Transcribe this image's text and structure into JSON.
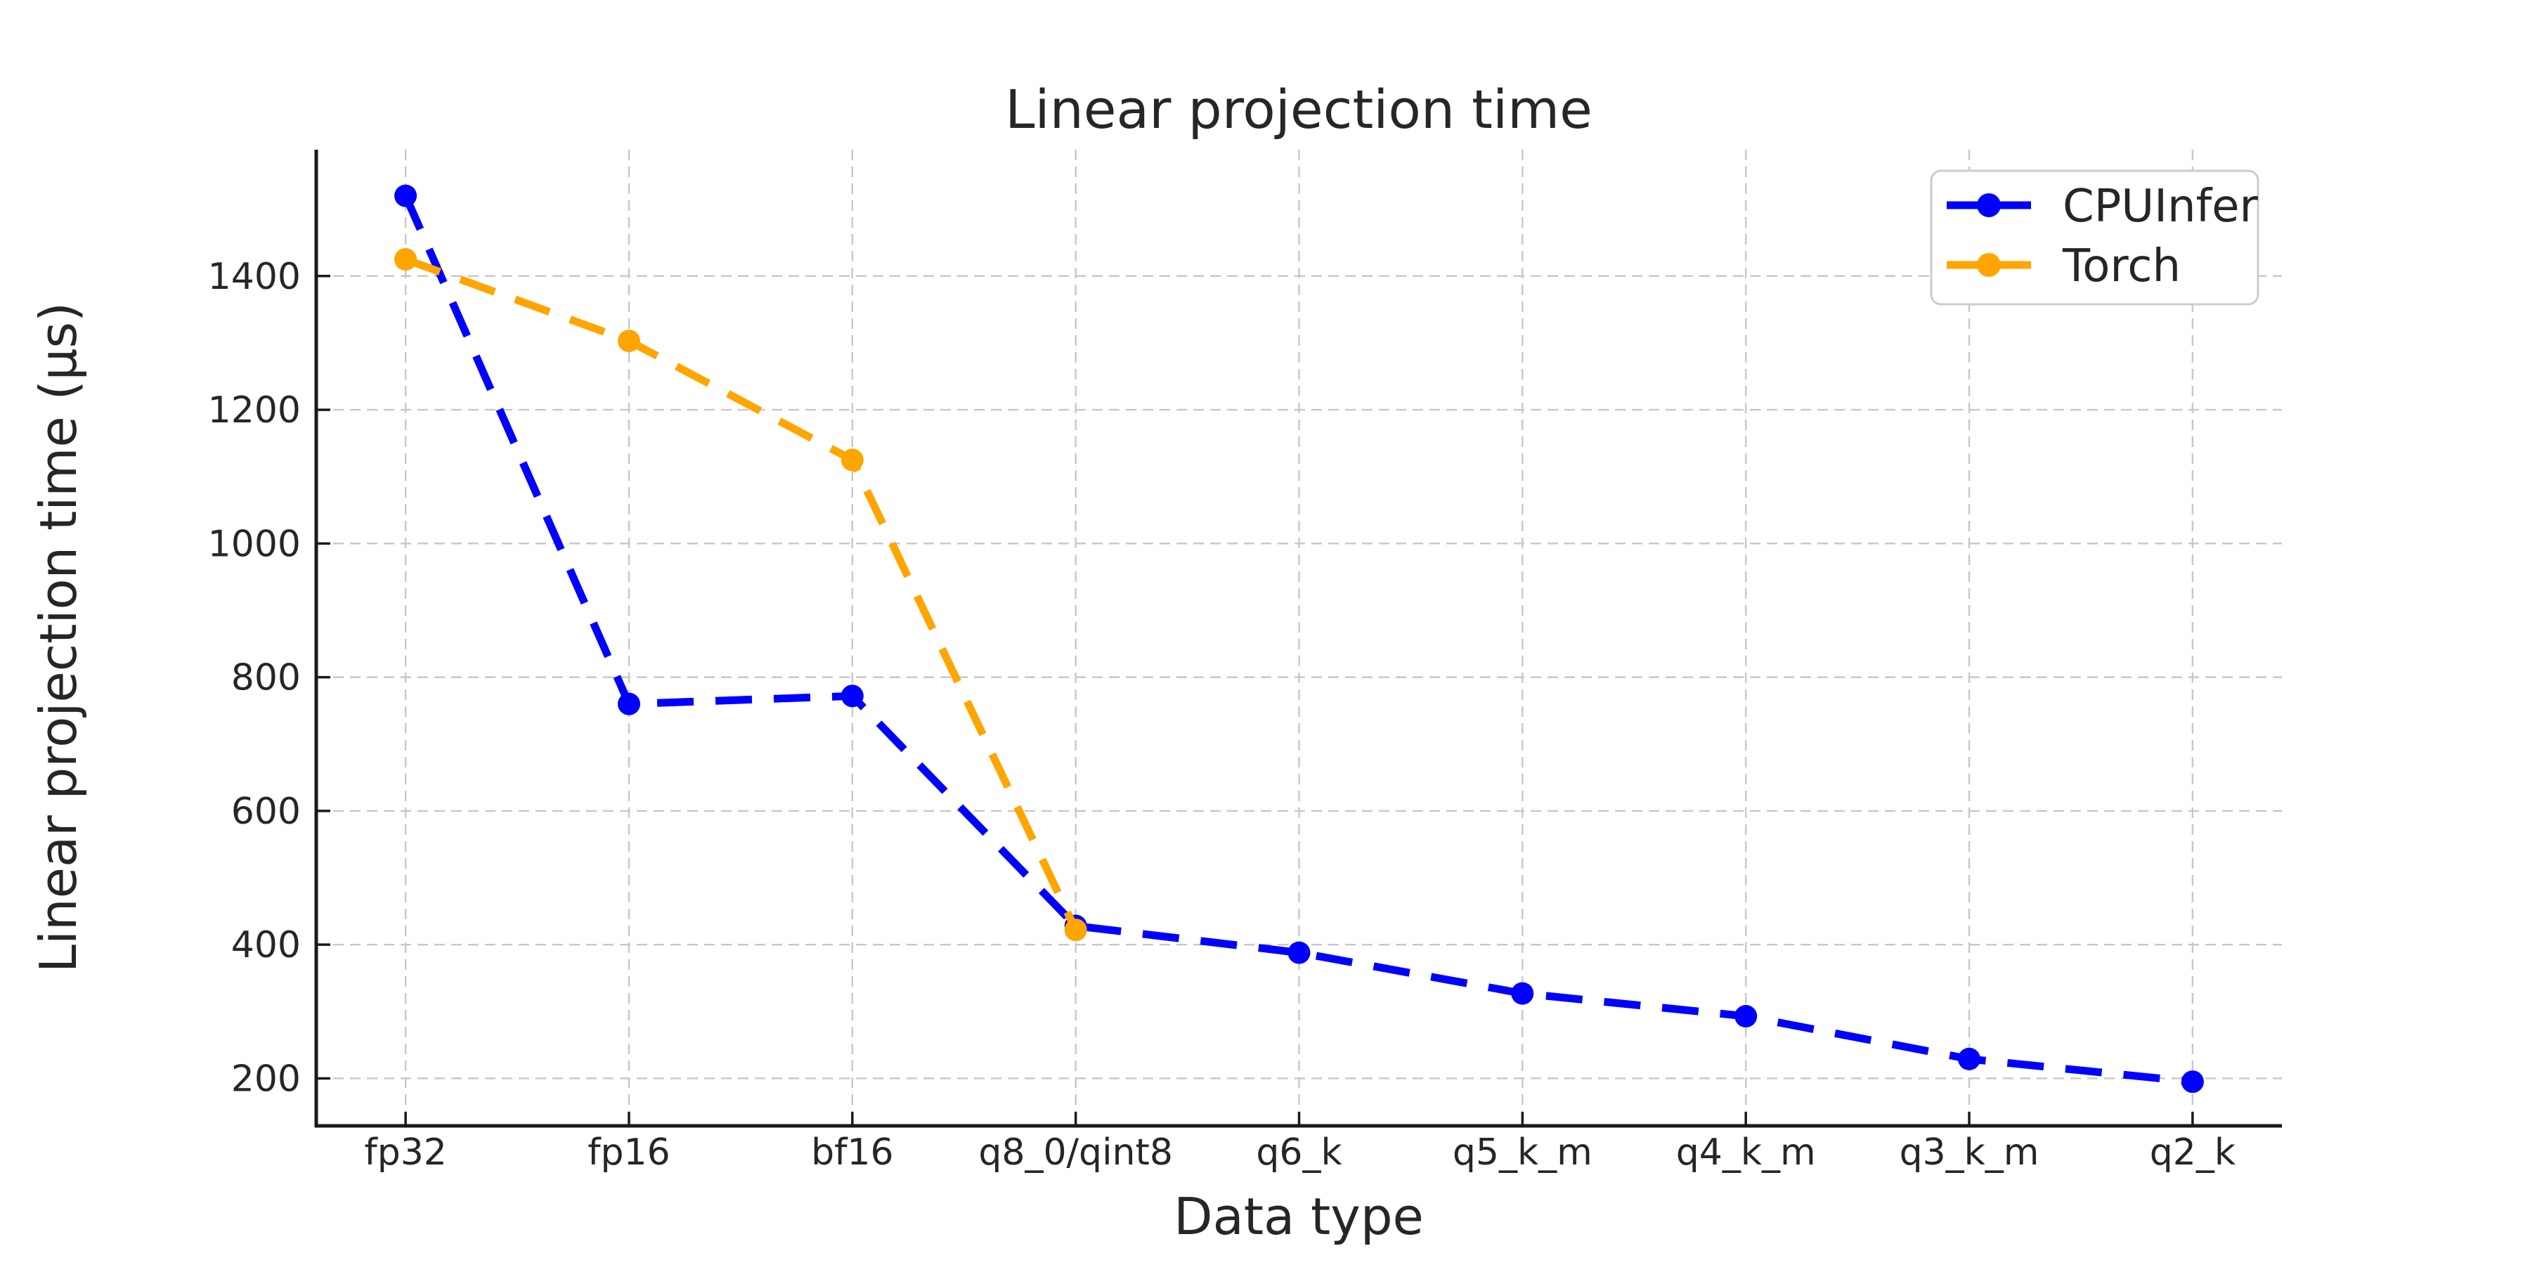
{
  "figure": {
    "title": "Linear projection time",
    "xlabel": "Data type",
    "ylabel": "Linear projection time (µs)"
  },
  "legend": {
    "position": "upper right",
    "entries": [
      {
        "label": "CPUInfer",
        "color": "#0000ff"
      },
      {
        "label": "Torch",
        "color": "#ffa500"
      }
    ]
  },
  "chart_data": {
    "type": "line",
    "title": "Linear projection time",
    "xlabel": "Data type",
    "ylabel": "Linear projection time (µs)",
    "categories": [
      "fp32",
      "fp16",
      "bf16",
      "q8_0/qint8",
      "q6_k",
      "q5_k_m",
      "q4_k_m",
      "q3_k_m",
      "q2_k"
    ],
    "series": [
      {
        "name": "CPUInfer",
        "color": "#0000ff",
        "values": [
          1520,
          760,
          772,
          428,
          388,
          327,
          293,
          229,
          195
        ]
      },
      {
        "name": "Torch",
        "color": "#ffa500",
        "values": [
          1425,
          1303,
          1125,
          422
        ]
      }
    ],
    "yticks": [
      200,
      400,
      600,
      800,
      1000,
      1200,
      1400
    ],
    "ylim": [
      129,
      1589
    ],
    "grid": true,
    "grid_style": "dashed",
    "line_style": "dashed",
    "marker": "circle",
    "legend_position": "upper right"
  },
  "style": {
    "grid_color": "#c7c7c7",
    "spine_color": "#1a1a1a",
    "text_color": "#262626",
    "background": "#ffffff",
    "legend_border": "#cccccc"
  }
}
